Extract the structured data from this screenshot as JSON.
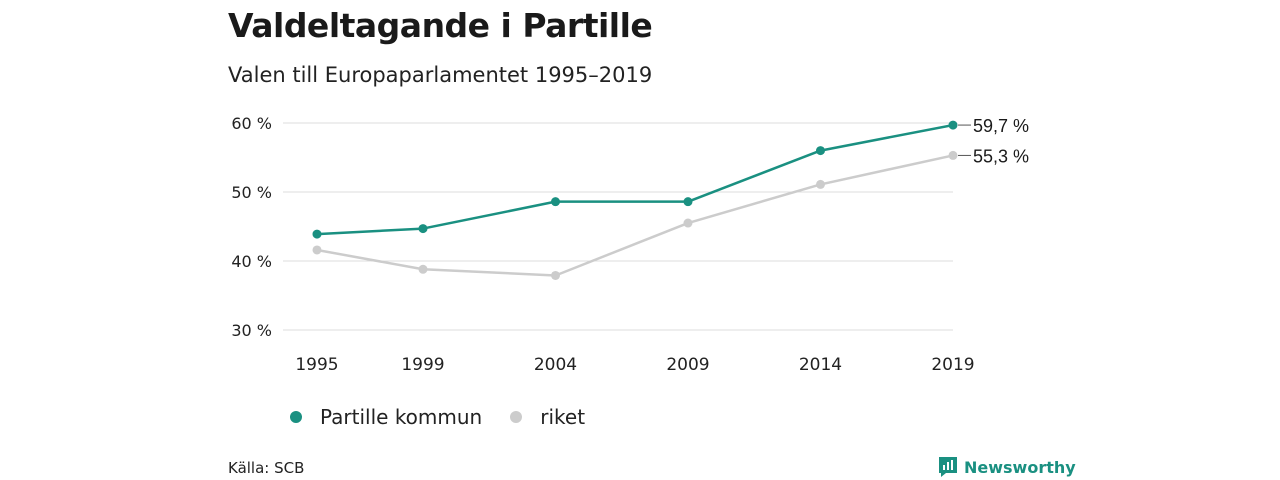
{
  "title": "Valdeltagande i Partille",
  "subtitle": "Valen till Europaparlamentet 1995–2019",
  "source": "Källa: SCB",
  "brand": {
    "name": "Newsworthy",
    "icon": "newsworthy-logo-icon",
    "color": "#1a9081"
  },
  "legend": [
    {
      "label": "Partille kommun",
      "color": "#1a9081"
    },
    {
      "label": "riket",
      "color": "#cccccc"
    }
  ],
  "chart_data": {
    "type": "line",
    "x": [
      1995,
      1999,
      2004,
      2009,
      2014,
      2019
    ],
    "x_tick_labels": [
      "1995",
      "1999",
      "2004",
      "2009",
      "2014",
      "2019"
    ],
    "y_ticks": [
      30,
      40,
      50,
      60
    ],
    "y_tick_labels": [
      "30 %",
      "40 %",
      "50 %",
      "60 %"
    ],
    "ylim": [
      30,
      60
    ],
    "grid": true,
    "legend_position": "bottom-left",
    "series": [
      {
        "name": "Partille kommun",
        "color": "#1a9081",
        "values": [
          43.9,
          44.7,
          48.6,
          48.6,
          56.0,
          59.7
        ],
        "end_label": "59,7 %"
      },
      {
        "name": "riket",
        "color": "#cccccc",
        "values": [
          41.6,
          38.8,
          37.9,
          45.5,
          51.1,
          55.3
        ],
        "end_label": "55,3 %"
      }
    ]
  }
}
